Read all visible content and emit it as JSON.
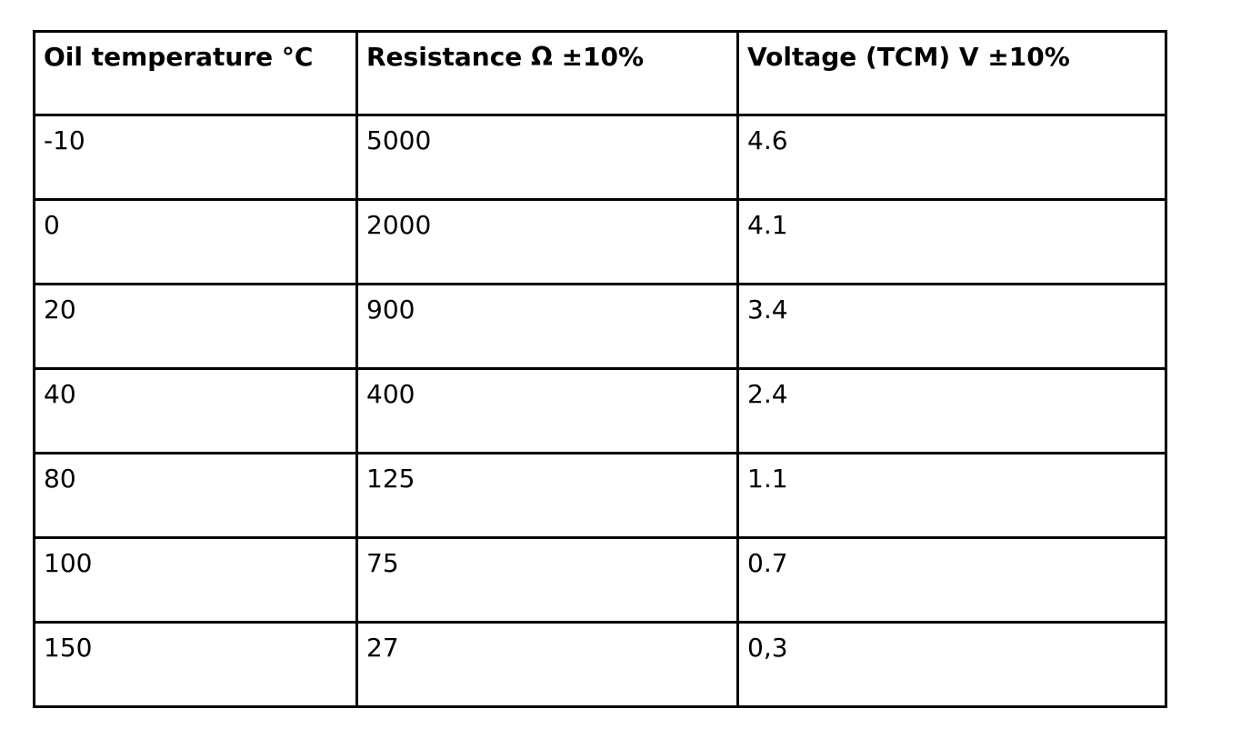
{
  "colors": {
    "background": "#ffffff",
    "border": "#000000",
    "text": "#000000"
  },
  "table": {
    "headers": [
      "Oil temperature °C",
      "Resistance Ω ±10%",
      "Voltage (TCM) V ±10%"
    ],
    "rows": [
      [
        "-10",
        "5000",
        "4.6"
      ],
      [
        "0",
        "2000",
        "4.1"
      ],
      [
        "20",
        "900",
        "3.4"
      ],
      [
        "40",
        "400",
        "2.4"
      ],
      [
        "80",
        "125",
        "1.1"
      ],
      [
        "100",
        "75",
        "0.7"
      ],
      [
        "150",
        "27",
        "0,3"
      ]
    ]
  }
}
